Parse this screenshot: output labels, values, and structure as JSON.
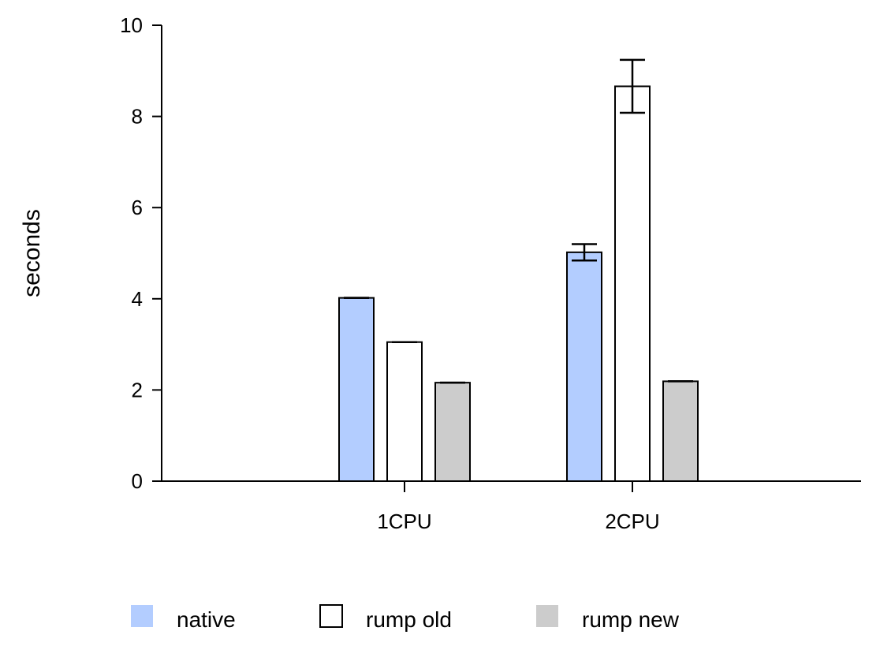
{
  "chart_data": {
    "type": "bar",
    "ylabel": "seconds",
    "ylim": [
      0,
      10
    ],
    "yticks": [
      0,
      2,
      4,
      6,
      8,
      10
    ],
    "categories": [
      "1CPU",
      "2CPU"
    ],
    "series": [
      {
        "name": "native",
        "color": "#b3cdff",
        "values": [
          4.02,
          5.02
        ],
        "errors": [
          0.0,
          0.18
        ]
      },
      {
        "name": "rump old",
        "color": "#ffffff",
        "values": [
          3.05,
          8.66
        ],
        "errors": [
          0.0,
          0.58
        ]
      },
      {
        "name": "rump new",
        "color": "#cccccc",
        "values": [
          2.16,
          2.19
        ],
        "errors": [
          0.0,
          0.0
        ]
      }
    ],
    "legend_position": "bottom",
    "grid": false
  }
}
